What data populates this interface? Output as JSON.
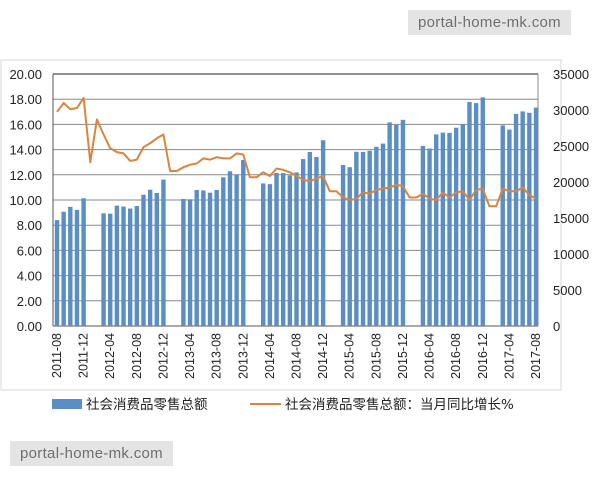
{
  "watermarks": [
    "portal-home-mk.com",
    "portal-home-mk.com"
  ],
  "chart_data": {
    "type": "bar+line",
    "title": "",
    "x": [
      "2011-08",
      "2011-09",
      "2011-10",
      "2011-11",
      "2011-12",
      "2012-01",
      "2012-02",
      "2012-03",
      "2012-04",
      "2012-05",
      "2012-06",
      "2012-07",
      "2012-08",
      "2012-09",
      "2012-10",
      "2012-11",
      "2012-12",
      "2013-01",
      "2013-02",
      "2013-03",
      "2013-04",
      "2013-05",
      "2013-06",
      "2013-07",
      "2013-08",
      "2013-09",
      "2013-10",
      "2013-11",
      "2013-12",
      "2014-01",
      "2014-02",
      "2014-03",
      "2014-04",
      "2014-05",
      "2014-06",
      "2014-07",
      "2014-08",
      "2014-09",
      "2014-10",
      "2014-11",
      "2014-12",
      "2015-01",
      "2015-02",
      "2015-03",
      "2015-04",
      "2015-05",
      "2015-06",
      "2015-07",
      "2015-08",
      "2015-09",
      "2015-10",
      "2015-11",
      "2015-12",
      "2016-01",
      "2016-02",
      "2016-03",
      "2016-04",
      "2016-05",
      "2016-06",
      "2016-07",
      "2016-08",
      "2016-09",
      "2016-10",
      "2016-11",
      "2016-12",
      "2017-01",
      "2017-02",
      "2017-03",
      "2017-04",
      "2017-05",
      "2017-06",
      "2017-07",
      "2017-08"
    ],
    "tick_labels": [
      "2011-08",
      "2011-12",
      "2012-04",
      "2012-08",
      "2012-12",
      "2013-04",
      "2013-08",
      "2013-12",
      "2014-04",
      "2014-08",
      "2014-12",
      "2015-04",
      "2015-08",
      "2015-12",
      "2016-04",
      "2016-08",
      "2016-12",
      "2017-04",
      "2017-08"
    ],
    "series": [
      {
        "name": "社会消费品零售总额",
        "type": "bar",
        "axis": "right",
        "color": "#5b8ec4",
        "values": [
          14705,
          15865,
          16546,
          16128,
          17740,
          null,
          null,
          15650,
          15603,
          16715,
          16584,
          16315,
          16659,
          18227,
          18934,
          18477,
          20334,
          null,
          null,
          17640,
          17600,
          18887,
          18827,
          18513,
          18886,
          20653,
          21491,
          21012,
          23060,
          null,
          null,
          19801,
          19701,
          21250,
          21243,
          20917,
          21330,
          23188,
          24170,
          23475,
          25801,
          null,
          null,
          22361,
          22060,
          24195,
          24176,
          24342,
          24893,
          25339,
          28278,
          27937,
          28635,
          null,
          null,
          24994,
          24646,
          26610,
          26857,
          26827,
          27540,
          28003,
          31119,
          30959,
          31757,
          null,
          null,
          27864,
          27278,
          29459,
          29808,
          29610,
          30330
        ]
      },
      {
        "name": "社会消费品零售总额：当月同比增长%",
        "type": "line",
        "axis": "left",
        "color": "#d9843f",
        "values": [
          17.0,
          17.7,
          17.2,
          17.3,
          18.1,
          13.0,
          16.4,
          15.2,
          14.1,
          13.8,
          13.7,
          13.1,
          13.2,
          14.2,
          14.5,
          14.9,
          15.2,
          12.3,
          12.3,
          12.6,
          12.8,
          12.9,
          13.3,
          13.2,
          13.4,
          13.3,
          13.3,
          13.7,
          13.6,
          11.8,
          11.8,
          12.2,
          11.9,
          12.5,
          12.4,
          12.2,
          11.9,
          11.6,
          11.5,
          11.7,
          11.9,
          10.7,
          10.7,
          10.2,
          10.0,
          10.1,
          10.6,
          10.5,
          10.8,
          10.9,
          11.0,
          11.2,
          11.1,
          10.2,
          10.2,
          10.5,
          10.1,
          10.0,
          10.6,
          10.2,
          10.6,
          10.7,
          10.0,
          10.8,
          10.9,
          9.5,
          9.5,
          10.9,
          10.7,
          10.7,
          11.0,
          10.4,
          10.1
        ]
      }
    ],
    "left_axis": {
      "range": [
        0,
        20
      ],
      "ticks": [
        "0.00",
        "2.00",
        "4.00",
        "6.00",
        "8.00",
        "10.00",
        "12.00",
        "14.00",
        "16.00",
        "18.00",
        "20.00"
      ]
    },
    "right_axis": {
      "range": [
        0,
        35000
      ],
      "ticks": [
        "0",
        "5000",
        "10000",
        "15000",
        "20000",
        "25000",
        "30000",
        "35000"
      ]
    },
    "grid": true,
    "legend_position": "bottom"
  }
}
